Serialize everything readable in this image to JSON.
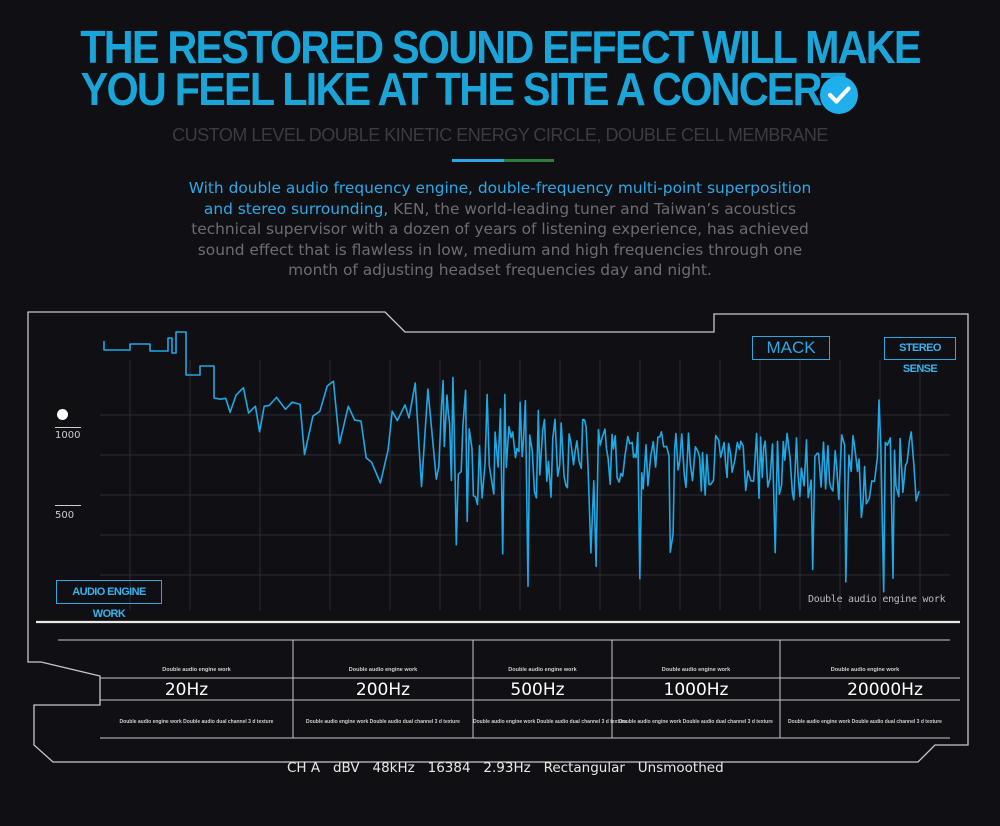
{
  "header": {
    "title_line1": "THE RESTORED SOUND EFFECT WILL MAKE",
    "title_line2": "YOU FEEL LIKE AT THE SITE A CONCERT.",
    "subtitle": "CUSTOM LEVEL DOUBLE KINETIC ENERGY CIRCLE, DOUBLE CELL MEMBRANE",
    "check_icon": "check-circle-icon"
  },
  "description": {
    "highlight": "With double audio frequency engine, double-frequency multi-point superposition and stereo surrounding,",
    "rest": " KEN, the world-leading tuner and Taiwan’s acoustics technical supervisor with a dozen of years of listening experience, has achieved sound effect that is flawless in low, medium and high frequencies through one month of adjusting headset frequencies day and night."
  },
  "graph": {
    "y_label_high": "1000",
    "y_label_low": "500",
    "tag_mack": "MACK",
    "tag_stereo": "STEREO SENSE",
    "tag_audio": "AUDIO ENGINE WORK",
    "caption": "Double audio engine work"
  },
  "table": {
    "cells": [
      {
        "top": "Double audio engine work",
        "freq": "20Hz",
        "bottom": "Double audio engine work Double audio dual channel 3 d texture"
      },
      {
        "top": "Double audio engine work",
        "freq": "200Hz",
        "bottom": "Double audio engine work Double audio dual channel 3 d texture"
      },
      {
        "top": "Double audio engine work",
        "freq": "500Hz",
        "bottom": "Double audio engine work Double audio dual channel 3 d texture"
      },
      {
        "top": "Double audio engine work",
        "freq": "1000Hz",
        "bottom": "Double audio engine work Double audio dual channel 3 d texture"
      },
      {
        "top": "Double audio engine work",
        "freq": "20000Hz",
        "bottom": "Double audio engine work Double audio dual channel 3 d texture"
      }
    ]
  },
  "footer": {
    "text": "CH A   dBV   48kHz   16384   2.93Hz   Rectangular   Unsmoothed"
  },
  "colors": {
    "accent": "#1aa4d8",
    "waveform": "#1ea8e4",
    "frame": "#c4c8cc"
  }
}
